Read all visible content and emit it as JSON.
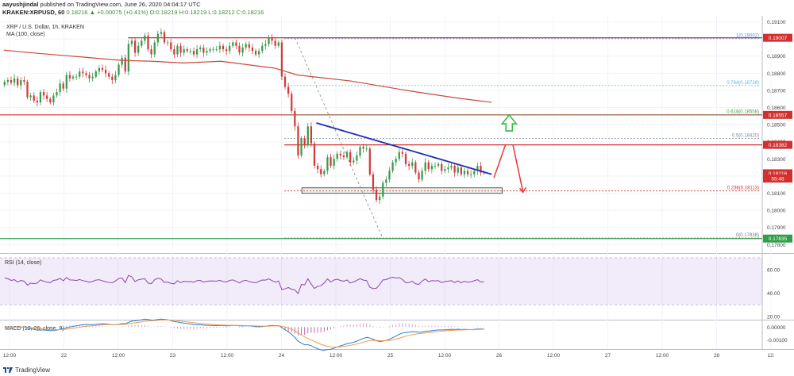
{
  "header": {
    "publisher": "aayushjindal",
    "published_text": "published on TradingView.com, June 26, 2020 04:04:17 UTC",
    "exchange_symbol": "KRAKEN:XRPUSD, 60",
    "quote": "0.18216 ▲ +0.00075 (+0.41%) O:0.18219 H:0.18219 L:0.18212 C:0.18216"
  },
  "chart_data": {
    "type": "candlestick",
    "title": "XRP / U.S. Dollar, 1h, KRAKEN",
    "indicator_label": "MA (100, close)",
    "y_ticks": [
      "0.19100",
      "0.19000",
      "0.18900",
      "0.18800",
      "0.18700",
      "0.18600",
      "0.18500",
      "0.18400",
      "0.18300",
      "0.18200",
      "0.18100",
      "0.18000",
      "0.17900",
      "0.17800"
    ],
    "ylim": [
      0.17755,
      0.19135
    ],
    "x_ticks": [
      "12:00",
      "22",
      "12:00",
      "23",
      "12:00",
      "24",
      "12:00",
      "25",
      "12:00",
      "26",
      "12:00",
      "27",
      "12:00",
      "28",
      "12:"
    ],
    "price_badges": [
      {
        "label": "0.19007",
        "value": 0.19007,
        "color": "#d32f2f"
      },
      {
        "label": "0.18557",
        "value": 0.18557,
        "color": "#d32f2f"
      },
      {
        "label": "0.18382",
        "value": 0.18382,
        "color": "#d32f2f"
      },
      {
        "label": "0.18216",
        "value": 0.18216,
        "color": "#d32f2f"
      },
      {
        "label": "55:48",
        "value": 0.18185,
        "color": "#d32f2f"
      },
      {
        "label": "0.17835",
        "value": 0.17835,
        "color": "#2e9e48"
      }
    ],
    "fib_levels": [
      {
        "label": "1(0.19002)",
        "value": 0.19002,
        "color": "#5b8fd6"
      },
      {
        "label": "0.764(0.18728)",
        "value": 0.18728,
        "color": "#5bb6e6"
      },
      {
        "label": "0.618(0.18558)",
        "value": 0.18558,
        "color": "#4a9a4a"
      },
      {
        "label": "0.5(0.18420)",
        "value": 0.1842,
        "color": "#7b8a99"
      },
      {
        "label": "0.236(0.18113)",
        "value": 0.18113,
        "color": "#d32f2f"
      },
      {
        "label": "0(0.17838)",
        "value": 0.17838,
        "color": "#777777"
      }
    ],
    "horizontal_levels": [
      {
        "value": 0.19007,
        "color": "#d32f2f"
      },
      {
        "value": 0.18557,
        "color": "#d32f2f"
      },
      {
        "value": 0.18382,
        "color": "#d32f2f"
      },
      {
        "value": 0.17835,
        "color": "#2e9e48"
      }
    ],
    "trendline": {
      "from": [
        0.415,
        0.1851
      ],
      "to": [
        0.645,
        0.1821
      ],
      "color": "#1f2fb0"
    },
    "support_zone": {
      "from": 0.396,
      "to": 0.659,
      "low": 0.18099,
      "high": 0.18131
    },
    "arrows": [
      {
        "type": "up",
        "x": 0.668,
        "y": 0.18505,
        "color": "#2fbf40"
      }
    ],
    "closes": [
      0.1875,
      0.1876,
      0.18745,
      0.1877,
      0.1873,
      0.1876,
      0.1875,
      0.1866,
      0.1867,
      0.1864,
      0.1863,
      0.1869,
      0.1867,
      0.1865,
      0.1863,
      0.1867,
      0.1869,
      0.1874,
      0.1871,
      0.1879,
      0.1877,
      0.1878,
      0.1878,
      0.1881,
      0.188,
      0.1879,
      0.1877,
      0.1878,
      0.1881,
      0.1883,
      0.1882,
      0.188,
      0.1878,
      0.1876,
      0.1879,
      0.1885,
      0.1889,
      0.1881,
      0.1897,
      0.1899,
      0.1892,
      0.1896,
      0.1899,
      0.1902,
      0.1894,
      0.1891,
      0.1898,
      0.1903,
      0.1904,
      0.1898,
      0.1898,
      0.1894,
      0.1891,
      0.1896,
      0.1892,
      0.1894,
      0.1893,
      0.1893,
      0.1891,
      0.1894,
      0.1895,
      0.1892,
      0.1893,
      0.1894,
      0.1894,
      0.1894,
      0.1896,
      0.1894,
      0.1893,
      0.1896,
      0.1898,
      0.1896,
      0.1892,
      0.1895,
      0.1897,
      0.1895,
      0.1893,
      0.1891,
      0.1893,
      0.1896,
      0.1897,
      0.1901,
      0.1899,
      0.1896,
      0.1898,
      0.1878,
      0.1872,
      0.1868,
      0.1858,
      0.1849,
      0.1832,
      0.1842,
      0.1838,
      0.1849,
      0.1839,
      0.1826,
      0.1824,
      0.1821,
      0.1823,
      0.1831,
      0.1826,
      0.183,
      0.1833,
      0.1832,
      0.1831,
      0.1834,
      0.1828,
      0.1829,
      0.1832,
      0.1837,
      0.1836,
      0.1836,
      0.1821,
      0.1812,
      0.1806,
      0.1808,
      0.1816,
      0.1818,
      0.1823,
      0.1828,
      0.183,
      0.1834,
      0.1833,
      0.1827,
      0.1826,
      0.1828,
      0.1822,
      0.1818,
      0.1823,
      0.1828,
      0.1824,
      0.1826,
      0.1826,
      0.1827,
      0.1823,
      0.1824,
      0.1825,
      0.1826,
      0.1822,
      0.1825,
      0.1821,
      0.1823,
      0.1821,
      0.1821,
      0.1823,
      0.1826,
      0.1822,
      0.1822
    ],
    "ma100": [
      0.18935,
      0.1892,
      0.18905,
      0.1889,
      0.18875,
      0.1887,
      0.1886,
      0.1887,
      0.1883,
      0.1879,
      0.18775,
      0.18755,
      0.18725,
      0.18695,
      0.18655,
      0.1863
    ],
    "ma100_x": [
      0.005,
      0.04,
      0.08,
      0.12,
      0.16,
      0.2,
      0.24,
      0.29,
      0.36,
      0.39,
      0.42,
      0.46,
      0.5,
      0.54,
      0.6,
      0.645
    ],
    "rsi": {
      "label": "RSI (14, close)",
      "ticks": [
        "60.00",
        "40.00",
        "20.00"
      ],
      "ylim": [
        18,
        72
      ],
      "band": [
        30,
        70
      ]
    },
    "macd": {
      "label": "MACD (12, 26, close, 9)",
      "ticks": [
        "0.00000",
        "-0.00100"
      ],
      "ylim": [
        -0.0017,
        0.00045
      ]
    }
  },
  "footer": {
    "brand": "TradingView"
  }
}
